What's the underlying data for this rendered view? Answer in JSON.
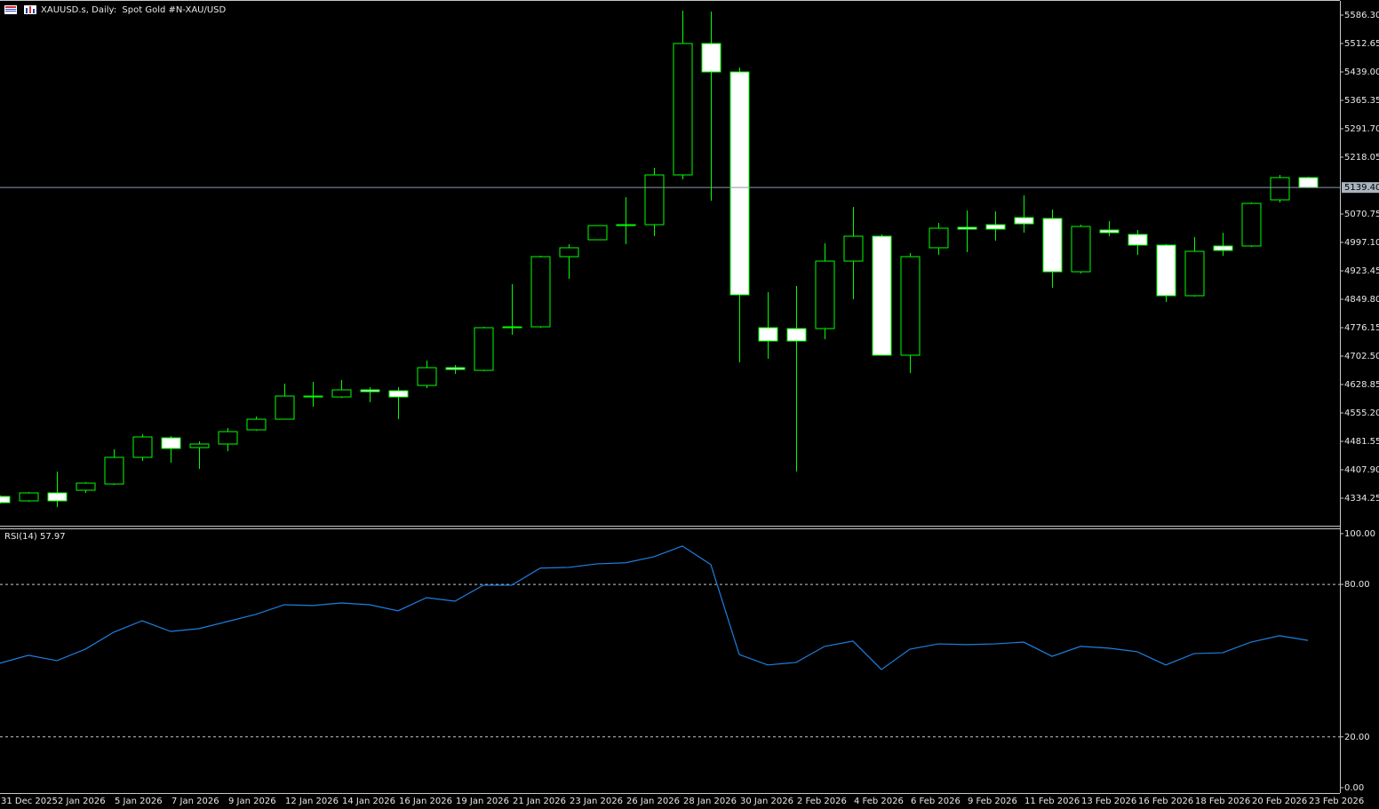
{
  "chart_data": [
    {
      "type": "candlestick",
      "title": "XAUUSD.s, Daily:  Spot Gold #N-XAU/USD",
      "categories": [
        "31 Dec 2025",
        null,
        "2 Jan 2026",
        null,
        "5 Jan 2026",
        null,
        "7 Jan 2026",
        null,
        "9 Jan 2026",
        null,
        "12 Jan 2026",
        null,
        "14 Jan 2026",
        null,
        "16 Jan 2026",
        null,
        "19 Jan 2026",
        null,
        "21 Jan 2026",
        null,
        "23 Jan 2026",
        null,
        "26 Jan 2026",
        null,
        "28 Jan 2026",
        null,
        "30 Jan 2026",
        null,
        "2 Feb 2026",
        null,
        "4 Feb 2026",
        null,
        "6 Feb 2026",
        null,
        "9 Feb 2026",
        null,
        "11 Feb 2026",
        null,
        "13 Feb 2026",
        null,
        "16 Feb 2026",
        null,
        "18 Feb 2026",
        null,
        "20 Feb 2026",
        null,
        "23 Feb 2026"
      ],
      "open": [
        4338.8,
        4327.3,
        4348.0,
        4354.9,
        4371.0,
        4440.1,
        4490.7,
        4465.4,
        4474.6,
        4511.4,
        4539.0,
        4596.6,
        4596.6,
        4615.0,
        4612.7,
        4626.5,
        4672.5,
        4665.6,
        4776.1,
        4778.4,
        4960.2,
        5004.0,
        5040.8,
        5043.1,
        5172.0,
        5512.6,
        5439.0,
        4776.1,
        4773.8,
        4773.8,
        4948.7,
        5013.2,
        4704.8,
        4983.3,
        5036.2,
        5043.1,
        5061.5,
        5059.2,
        4921.1,
        5029.3,
        5017.8,
        4990.2,
        4859.0,
        4987.9,
        4987.9,
        5107.5,
        5165.1
      ],
      "high": [
        4341.1,
        4350.3,
        4403.3,
        4375.6,
        4460.8,
        4499.9,
        4495.3,
        4481.5,
        4516.0,
        4545.9,
        4631.1,
        4635.7,
        4640.3,
        4621.9,
        4621.9,
        4690.9,
        4679.5,
        4778.4,
        4888.9,
        4962.5,
        4992.5,
        5040.8,
        5114.4,
        5190.4,
        5597.8,
        5595.5,
        5450.5,
        4868.2,
        4884.3,
        4994.8,
        5089.1,
        5017.8,
        4969.4,
        5047.7,
        5079.9,
        5077.6,
        5119.0,
        5082.2,
        5043.1,
        5052.3,
        5029.3,
        4992.5,
        5010.9,
        5022.4,
        5100.6,
        5172.0,
        5167.4
      ],
      "low": [
        4320.4,
        4325.0,
        4311.2,
        4348.0,
        4368.7,
        4430.9,
        4426.3,
        4410.2,
        4456.2,
        4509.1,
        4539.0,
        4571.3,
        4594.3,
        4582.8,
        4539.0,
        4619.6,
        4656.4,
        4663.3,
        4757.7,
        4776.1,
        4902.7,
        5004.0,
        4992.5,
        5013.2,
        5160.5,
        5105.2,
        4686.3,
        4695.6,
        4403.3,
        4746.2,
        4849.8,
        4704.8,
        4658.7,
        4964.8,
        4971.7,
        5001.7,
        5022.4,
        4879.7,
        4916.5,
        5013.2,
        4964.8,
        4842.9,
        4856.7,
        4962.5,
        4985.6,
        5100.6,
        5137.5
      ],
      "close": [
        4322.7,
        4348.0,
        4327.3,
        4373.3,
        4440.1,
        4493.0,
        4463.1,
        4474.6,
        4506.8,
        4539.0,
        4598.9,
        4598.9,
        4615.0,
        4610.4,
        4596.6,
        4672.5,
        4667.9,
        4776.1,
        4778.4,
        4960.2,
        4983.3,
        5040.8,
        5043.1,
        5172.0,
        5512.6,
        5439.0,
        4861.3,
        4741.6,
        4741.6,
        4948.7,
        5013.2,
        4704.8,
        4960.2,
        5033.9,
        5031.6,
        5031.6,
        5045.4,
        4921.1,
        5038.5,
        5022.4,
        4990.2,
        4859.0,
        4974.1,
        4976.4,
        5098.3,
        5165.1,
        5139.4
      ],
      "color": "#00ff00",
      "up_fill": "#000000",
      "down_fill": "#ffffff",
      "ylim": [
        4262.9,
        5620.8
      ],
      "yticks": [
        {
          "value": 5586.3,
          "label": "5586.30"
        },
        {
          "value": 5512.65,
          "label": "5512.65"
        },
        {
          "value": 5439.0,
          "label": "5439.00"
        },
        {
          "value": 5365.35,
          "label": "5365.35"
        },
        {
          "value": 5291.7,
          "label": "5291.70"
        },
        {
          "value": 5218.05,
          "label": "5218.05"
        },
        {
          "value": 5070.75,
          "label": "5070.75"
        },
        {
          "value": 4997.1,
          "label": "4997.10"
        },
        {
          "value": 4923.45,
          "label": "4923.45"
        },
        {
          "value": 4849.8,
          "label": "4849.80"
        },
        {
          "value": 4776.15,
          "label": "4776.15"
        },
        {
          "value": 4702.5,
          "label": "4702.50"
        },
        {
          "value": 4628.85,
          "label": "4628.85"
        },
        {
          "value": 4555.2,
          "label": "4555.20"
        },
        {
          "value": 4481.55,
          "label": "4481.55"
        },
        {
          "value": 4407.9,
          "label": "4407.90"
        },
        {
          "value": 4334.25,
          "label": "4334.25"
        }
      ],
      "current_price": {
        "value": 5139.4,
        "label": "5139.40"
      },
      "grid": false
    },
    {
      "type": "line",
      "title": "RSI(14) 57.97",
      "values": [
        49.0,
        52.1,
        50.0,
        54.5,
        61.2,
        65.7,
        61.5,
        62.6,
        65.4,
        68.2,
        72.0,
        71.7,
        72.7,
        72.0,
        69.6,
        74.8,
        73.4,
        79.7,
        79.7,
        86.4,
        86.7,
        88.1,
        88.5,
        90.9,
        95.1,
        87.8,
        52.4,
        48.3,
        49.3,
        55.6,
        57.7,
        46.5,
        54.5,
        56.6,
        56.3,
        56.6,
        57.3,
        51.7,
        55.6,
        54.9,
        53.5,
        48.3,
        52.8,
        53.1,
        57.3,
        59.8,
        57.97
      ],
      "color": "#1e7fe0",
      "ylim": [
        -2.1,
        101.7
      ],
      "yticks": [
        {
          "value": 100,
          "label": "100.00"
        },
        {
          "value": 80,
          "label": "80.00"
        },
        {
          "value": 20,
          "label": "20.00"
        },
        {
          "value": 0,
          "label": "0.00"
        }
      ],
      "levels": [
        80,
        20
      ],
      "grid": false
    }
  ]
}
